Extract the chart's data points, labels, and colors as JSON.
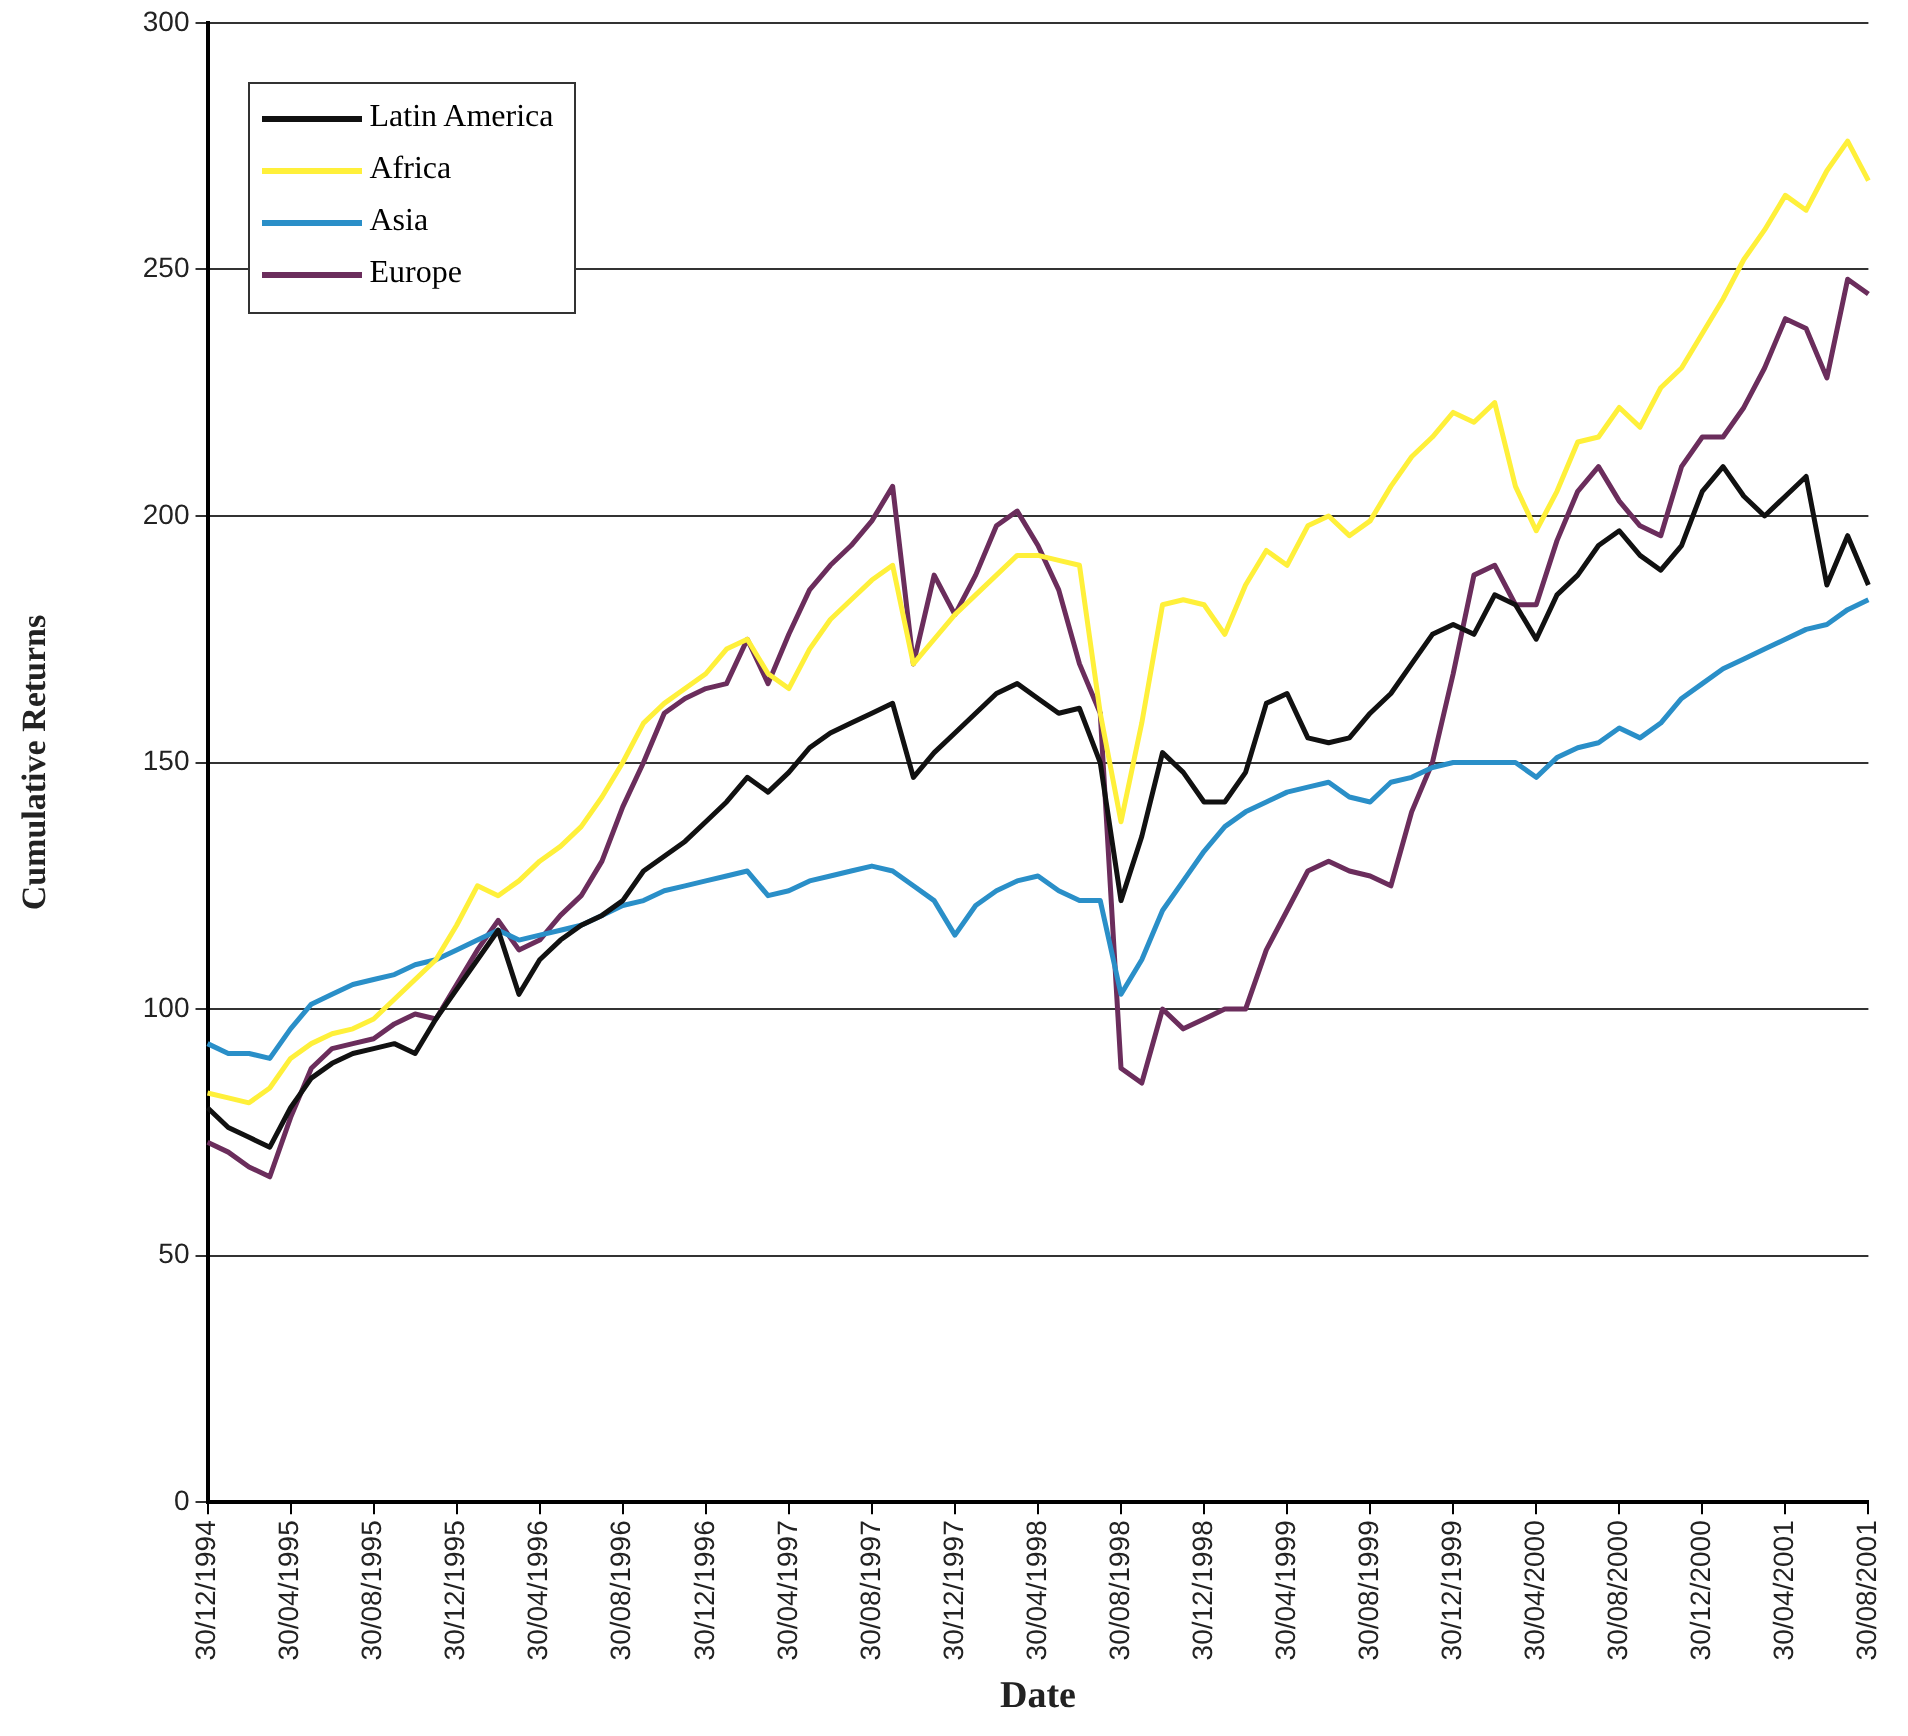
{
  "chart_data": {
    "type": "line",
    "xlabel": "Date",
    "ylabel": "Cumulative Returns",
    "categories": [
      "30/12/1994",
      null,
      null,
      null,
      "30/04/1995",
      null,
      null,
      null,
      "30/08/1995",
      null,
      null,
      null,
      "30/12/1995",
      null,
      null,
      null,
      "30/04/1996",
      null,
      null,
      null,
      "30/08/1996",
      null,
      null,
      null,
      "30/12/1996",
      null,
      null,
      null,
      "30/04/1997",
      null,
      null,
      null,
      "30/08/1997",
      null,
      null,
      null,
      "30/12/1997",
      null,
      null,
      null,
      "30/04/1998",
      null,
      null,
      null,
      "30/08/1998",
      null,
      null,
      null,
      "30/12/1998",
      null,
      null,
      null,
      "30/04/1999",
      null,
      null,
      null,
      "30/08/1999",
      null,
      null,
      null,
      "30/12/1999",
      null,
      null,
      null,
      "30/04/2000",
      null,
      null,
      null,
      "30/08/2000",
      null,
      null,
      null,
      "30/12/2000",
      null,
      null,
      null,
      "30/04/2001",
      null,
      null,
      null,
      "30/08/2001"
    ],
    "series": [
      {
        "name": "Latin America",
        "color": "#111111",
        "values": [
          80,
          76,
          74,
          72,
          80,
          86,
          89,
          91,
          92,
          93,
          91,
          98,
          104,
          110,
          116,
          103,
          110,
          114,
          117,
          119,
          122,
          128,
          131,
          134,
          138,
          142,
          147,
          144,
          148,
          153,
          156,
          158,
          160,
          162,
          147,
          152,
          156,
          160,
          164,
          166,
          163,
          160,
          161,
          150,
          122,
          135,
          152,
          148,
          142,
          142,
          148,
          162,
          164,
          155,
          154,
          155,
          160,
          164,
          170,
          176,
          178,
          176,
          184,
          182,
          175,
          184,
          188,
          194,
          197,
          192,
          189,
          194,
          205,
          210,
          204,
          200,
          204,
          208,
          186,
          196,
          186
        ]
      },
      {
        "name": "Africa",
        "color": "#fff03a",
        "values": [
          83,
          82,
          81,
          84,
          90,
          93,
          95,
          96,
          98,
          102,
          106,
          110,
          117,
          125,
          123,
          126,
          130,
          133,
          137,
          143,
          150,
          158,
          162,
          165,
          168,
          173,
          175,
          168,
          165,
          173,
          179,
          183,
          187,
          190,
          170,
          175,
          180,
          184,
          188,
          192,
          192,
          191,
          190,
          160,
          138,
          158,
          182,
          183,
          182,
          176,
          186,
          193,
          190,
          198,
          200,
          196,
          199,
          206,
          212,
          216,
          221,
          219,
          223,
          206,
          197,
          205,
          215,
          216,
          222,
          218,
          226,
          230,
          237,
          244,
          252,
          258,
          265,
          262,
          270,
          276,
          268
        ]
      },
      {
        "name": "Asia",
        "color": "#2a8fc8",
        "values": [
          93,
          91,
          91,
          90,
          96,
          101,
          103,
          105,
          106,
          107,
          109,
          110,
          112,
          114,
          116,
          114,
          115,
          116,
          117,
          119,
          121,
          122,
          124,
          125,
          126,
          127,
          128,
          123,
          124,
          126,
          127,
          128,
          129,
          128,
          125,
          122,
          115,
          121,
          124,
          126,
          127,
          124,
          122,
          122,
          103,
          110,
          120,
          126,
          132,
          137,
          140,
          142,
          144,
          145,
          146,
          143,
          142,
          146,
          147,
          149,
          150,
          150,
          150,
          150,
          147,
          151,
          153,
          154,
          157,
          155,
          158,
          163,
          166,
          169,
          171,
          173,
          175,
          177,
          178,
          181,
          183
        ]
      },
      {
        "name": "Europe",
        "color": "#6b2d5c",
        "values": [
          73,
          71,
          68,
          66,
          78,
          88,
          92,
          93,
          94,
          97,
          99,
          98,
          105,
          112,
          118,
          112,
          114,
          119,
          123,
          130,
          141,
          150,
          160,
          163,
          165,
          166,
          175,
          166,
          176,
          185,
          190,
          194,
          199,
          206,
          170,
          188,
          180,
          188,
          198,
          201,
          194,
          185,
          170,
          160,
          88,
          85,
          100,
          96,
          98,
          100,
          100,
          112,
          120,
          128,
          130,
          128,
          127,
          125,
          140,
          150,
          168,
          188,
          190,
          182,
          182,
          195,
          205,
          210,
          203,
          198,
          196,
          210,
          216,
          216,
          222,
          230,
          240,
          238,
          228,
          248,
          245
        ]
      }
    ],
    "ylim": [
      0,
      300
    ],
    "yticks": [
      0,
      50,
      100,
      150,
      200,
      250,
      300
    ],
    "grid": "y",
    "legend": "top left",
    "marker": "none",
    "line_style": "solid"
  }
}
